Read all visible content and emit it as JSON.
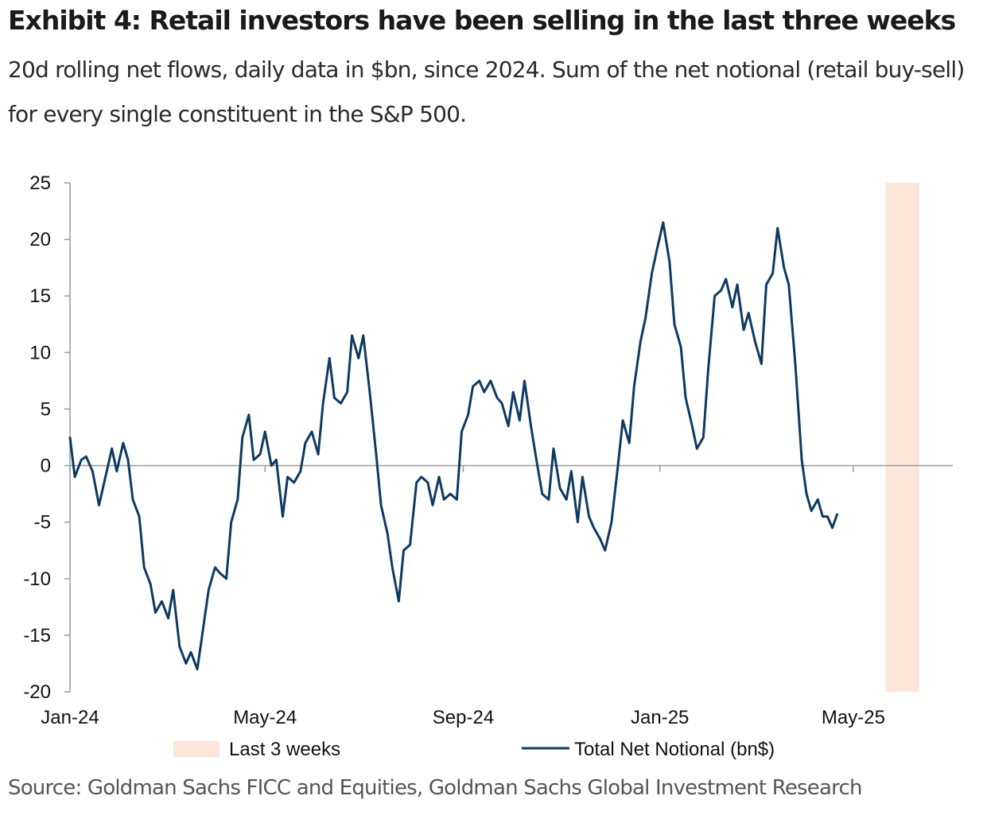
{
  "title": "Exhibit 4: Retail investors have been selling in the last three weeks",
  "subtitle": "20d rolling net flows, daily data in $bn, since 2024. Sum of the net notional (retail buy-sell) for every single constituent in the S&P 500.",
  "source": "Source: Goldman Sachs FICC and Equities, Goldman Sachs Global Investment Research",
  "colors": {
    "line": "#0e3a61",
    "shade": "#fbe6d9",
    "axis": "#9a9a9a"
  },
  "chart_data": {
    "type": "line",
    "title": "",
    "xlabel": "",
    "ylabel": "",
    "ylim": [
      -20,
      25
    ],
    "yticks": [
      "25",
      "20",
      "15",
      "10",
      "5",
      "0",
      "-5",
      "-10",
      "-15",
      "-20"
    ],
    "xticks": [
      "Jan-24",
      "May-24",
      "Sep-24",
      "Jan-25",
      "May-25"
    ],
    "xtick_dates": [
      "2024-01-01",
      "2024-05-01",
      "2024-09-01",
      "2025-01-01",
      "2025-05-01"
    ],
    "grid": false,
    "legend": "bottom",
    "shaded_region": {
      "label": "Last 3 weeks",
      "from": "2025-05-21",
      "to": "2025-06-11"
    },
    "series": [
      {
        "name": "Total Net Notional (bn$)",
        "points": [
          [
            "2024-01-01",
            2.5
          ],
          [
            "2024-01-04",
            -1.0
          ],
          [
            "2024-01-08",
            0.5
          ],
          [
            "2024-01-11",
            0.8
          ],
          [
            "2024-01-15",
            -0.5
          ],
          [
            "2024-01-19",
            -3.5
          ],
          [
            "2024-01-23",
            -1.0
          ],
          [
            "2024-01-27",
            1.5
          ],
          [
            "2024-01-30",
            -0.5
          ],
          [
            "2024-02-03",
            2.0
          ],
          [
            "2024-02-06",
            0.5
          ],
          [
            "2024-02-09",
            -3.0
          ],
          [
            "2024-02-13",
            -4.5
          ],
          [
            "2024-02-16",
            -9.0
          ],
          [
            "2024-02-20",
            -10.5
          ],
          [
            "2024-02-23",
            -13.0
          ],
          [
            "2024-02-27",
            -12.0
          ],
          [
            "2024-03-02",
            -13.5
          ],
          [
            "2024-03-05",
            -11.0
          ],
          [
            "2024-03-09",
            -16.0
          ],
          [
            "2024-03-13",
            -17.5
          ],
          [
            "2024-03-16",
            -16.5
          ],
          [
            "2024-03-20",
            -18.0
          ],
          [
            "2024-03-23",
            -15.0
          ],
          [
            "2024-03-27",
            -11.0
          ],
          [
            "2024-03-31",
            -9.0
          ],
          [
            "2024-04-03",
            -9.5
          ],
          [
            "2024-04-07",
            -10.0
          ],
          [
            "2024-04-10",
            -5.0
          ],
          [
            "2024-04-14",
            -3.0
          ],
          [
            "2024-04-17",
            2.5
          ],
          [
            "2024-04-21",
            4.5
          ],
          [
            "2024-04-24",
            0.5
          ],
          [
            "2024-04-28",
            1.0
          ],
          [
            "2024-05-01",
            3.0
          ],
          [
            "2024-05-05",
            0.0
          ],
          [
            "2024-05-08",
            0.5
          ],
          [
            "2024-05-12",
            -4.5
          ],
          [
            "2024-05-15",
            -1.0
          ],
          [
            "2024-05-19",
            -1.5
          ],
          [
            "2024-05-23",
            -0.5
          ],
          [
            "2024-05-26",
            2.0
          ],
          [
            "2024-05-30",
            3.0
          ],
          [
            "2024-06-03",
            1.0
          ],
          [
            "2024-06-06",
            5.5
          ],
          [
            "2024-06-10",
            9.5
          ],
          [
            "2024-06-13",
            6.0
          ],
          [
            "2024-06-17",
            5.5
          ],
          [
            "2024-06-21",
            6.5
          ],
          [
            "2024-06-24",
            11.5
          ],
          [
            "2024-06-28",
            9.5
          ],
          [
            "2024-07-01",
            11.5
          ],
          [
            "2024-07-05",
            6.5
          ],
          [
            "2024-07-09",
            1.0
          ],
          [
            "2024-07-12",
            -3.5
          ],
          [
            "2024-07-16",
            -6.0
          ],
          [
            "2024-07-19",
            -9.0
          ],
          [
            "2024-07-23",
            -12.0
          ],
          [
            "2024-07-26",
            -7.5
          ],
          [
            "2024-07-30",
            -7.0
          ],
          [
            "2024-08-03",
            -1.5
          ],
          [
            "2024-08-06",
            -1.0
          ],
          [
            "2024-08-10",
            -1.5
          ],
          [
            "2024-08-13",
            -3.5
          ],
          [
            "2024-08-17",
            -1.0
          ],
          [
            "2024-08-20",
            -3.0
          ],
          [
            "2024-08-24",
            -2.5
          ],
          [
            "2024-08-28",
            -3.0
          ],
          [
            "2024-08-31",
            3.0
          ],
          [
            "2024-09-04",
            4.5
          ],
          [
            "2024-09-07",
            7.0
          ],
          [
            "2024-09-11",
            7.5
          ],
          [
            "2024-09-14",
            6.5
          ],
          [
            "2024-09-18",
            7.5
          ],
          [
            "2024-09-22",
            6.0
          ],
          [
            "2024-09-25",
            5.5
          ],
          [
            "2024-09-29",
            3.5
          ],
          [
            "2024-10-02",
            6.5
          ],
          [
            "2024-10-06",
            4.0
          ],
          [
            "2024-10-09",
            7.5
          ],
          [
            "2024-10-13",
            3.5
          ],
          [
            "2024-10-17",
            0.0
          ],
          [
            "2024-10-20",
            -2.5
          ],
          [
            "2024-10-24",
            -3.0
          ],
          [
            "2024-10-27",
            1.5
          ],
          [
            "2024-10-31",
            -2.0
          ],
          [
            "2024-11-04",
            -3.0
          ],
          [
            "2024-11-07",
            -0.5
          ],
          [
            "2024-11-11",
            -5.0
          ],
          [
            "2024-11-14",
            -1.0
          ],
          [
            "2024-11-18",
            -4.5
          ],
          [
            "2024-11-21",
            -5.5
          ],
          [
            "2024-11-25",
            -6.5
          ],
          [
            "2024-11-28",
            -7.5
          ],
          [
            "2024-12-02",
            -5.0
          ],
          [
            "2024-12-06",
            0.0
          ],
          [
            "2024-12-09",
            4.0
          ],
          [
            "2024-12-13",
            2.0
          ],
          [
            "2024-12-16",
            7.0
          ],
          [
            "2024-12-20",
            11.0
          ],
          [
            "2024-12-23",
            13.0
          ],
          [
            "2024-12-27",
            17.0
          ],
          [
            "2024-12-30",
            19.0
          ],
          [
            "2025-01-03",
            21.5
          ],
          [
            "2025-01-07",
            18.0
          ],
          [
            "2025-01-10",
            12.5
          ],
          [
            "2025-01-14",
            10.5
          ],
          [
            "2025-01-17",
            6.0
          ],
          [
            "2025-01-21",
            3.5
          ],
          [
            "2025-01-24",
            1.5
          ],
          [
            "2025-01-28",
            2.5
          ],
          [
            "2025-01-31",
            8.5
          ],
          [
            "2025-02-04",
            15.0
          ],
          [
            "2025-02-08",
            15.5
          ],
          [
            "2025-02-11",
            16.5
          ],
          [
            "2025-02-15",
            14.0
          ],
          [
            "2025-02-18",
            16.0
          ],
          [
            "2025-02-22",
            12.0
          ],
          [
            "2025-02-25",
            13.5
          ],
          [
            "2025-03-01",
            11.0
          ],
          [
            "2025-03-05",
            9.0
          ],
          [
            "2025-03-08",
            16.0
          ],
          [
            "2025-03-12",
            17.0
          ],
          [
            "2025-03-15",
            21.0
          ],
          [
            "2025-03-19",
            17.5
          ],
          [
            "2025-03-22",
            16.0
          ],
          [
            "2025-03-26",
            9.0
          ],
          [
            "2025-03-30",
            0.5
          ],
          [
            "2025-04-02",
            -2.5
          ],
          [
            "2025-04-05",
            -4.0
          ],
          [
            "2025-04-09",
            -3.0
          ],
          [
            "2025-04-12",
            -4.5
          ],
          [
            "2025-04-15",
            -4.5
          ],
          [
            "2025-04-18",
            -5.5
          ],
          [
            "2025-04-21",
            -4.3
          ]
        ]
      }
    ]
  },
  "legend": [
    {
      "label": "Last 3 weeks"
    },
    {
      "label": "Total Net Notional (bn$)"
    }
  ]
}
